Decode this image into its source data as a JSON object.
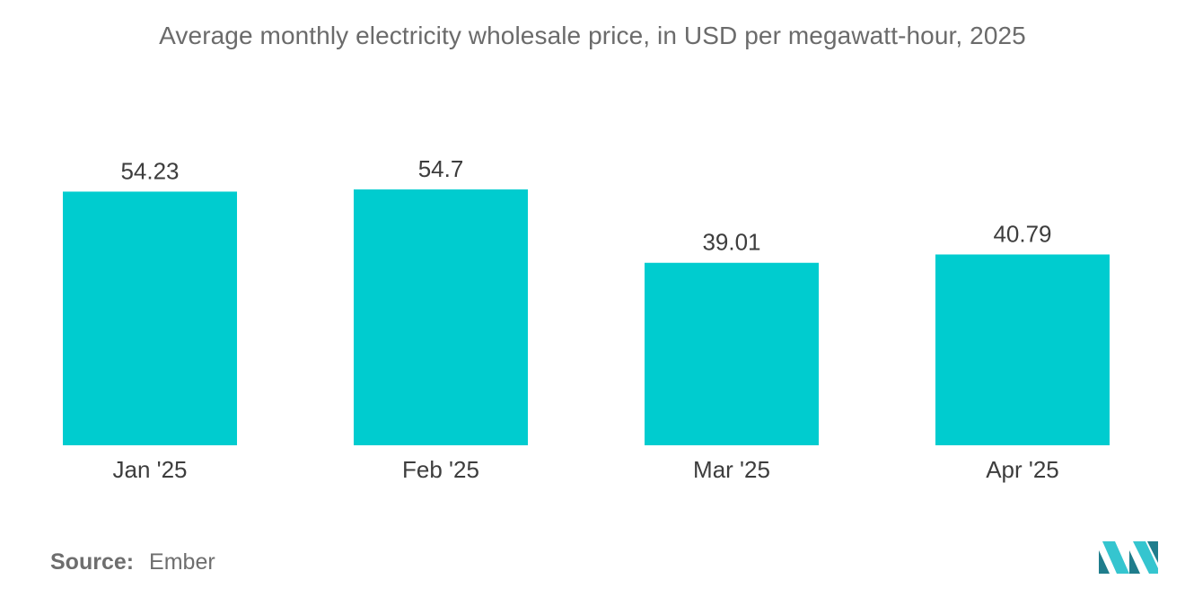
{
  "colors": {
    "bar": "#00cccf",
    "logo_dark": "#1f7d8c",
    "logo_light": "#35c5cf"
  },
  "footer": {
    "source_label": "Source:",
    "source_value": "Ember"
  },
  "logo": {
    "icon": "mordor-intelligence-logo-icon"
  },
  "chart_data": {
    "type": "bar",
    "title": "Average monthly electricity wholesale price, in USD per megawatt-hour, 2025",
    "categories": [
      "Jan '25",
      "Feb '25",
      "Mar '25",
      "Apr '25"
    ],
    "values": [
      54.23,
      54.7,
      39.01,
      40.79
    ],
    "value_labels": [
      "54.23",
      "54.7",
      "39.01",
      "40.79"
    ],
    "xlabel": "",
    "ylabel": "",
    "ylim": [
      0,
      54.7
    ],
    "grid": false,
    "legend": "none"
  }
}
